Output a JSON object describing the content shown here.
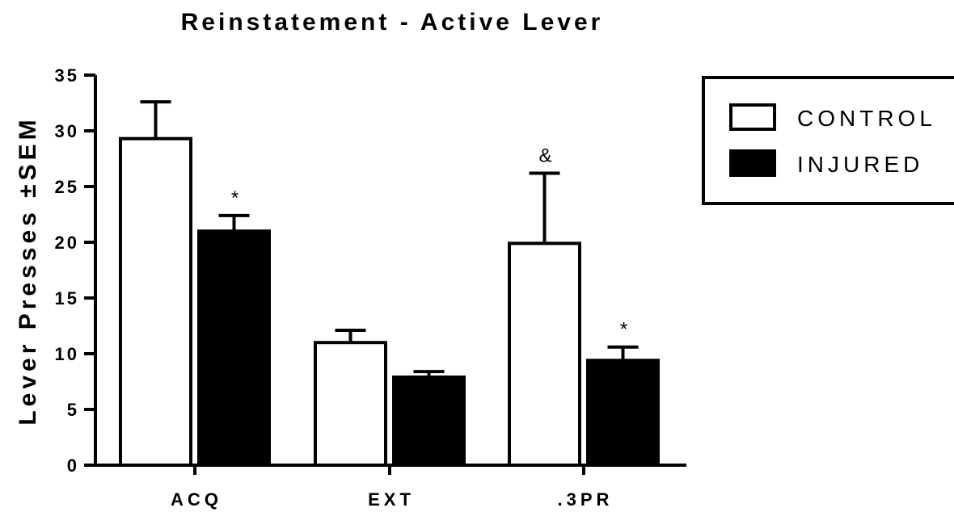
{
  "chart_data": {
    "type": "bar",
    "title": "Reinstatement - Active Lever",
    "ylabel": "Lever Presses ±SEM",
    "xlabel": "",
    "categories": [
      "ACQ",
      "EXT",
      ".3PR"
    ],
    "ylim": [
      0,
      35
    ],
    "yticks": [
      0,
      5,
      10,
      15,
      20,
      25,
      30,
      35
    ],
    "grid": false,
    "legend_position": "top-right",
    "series": [
      {
        "name": "CONTROL",
        "fill": "#ffffff",
        "values": [
          29.3,
          11.0,
          19.9
        ],
        "errors": [
          3.3,
          1.1,
          6.3
        ],
        "annotations": [
          "",
          "",
          "&"
        ]
      },
      {
        "name": "INJURED",
        "fill": "#000000",
        "values": [
          21.0,
          7.9,
          9.4
        ],
        "errors": [
          1.4,
          0.5,
          1.2
        ],
        "annotations": [
          "*",
          "",
          "*"
        ]
      }
    ]
  }
}
